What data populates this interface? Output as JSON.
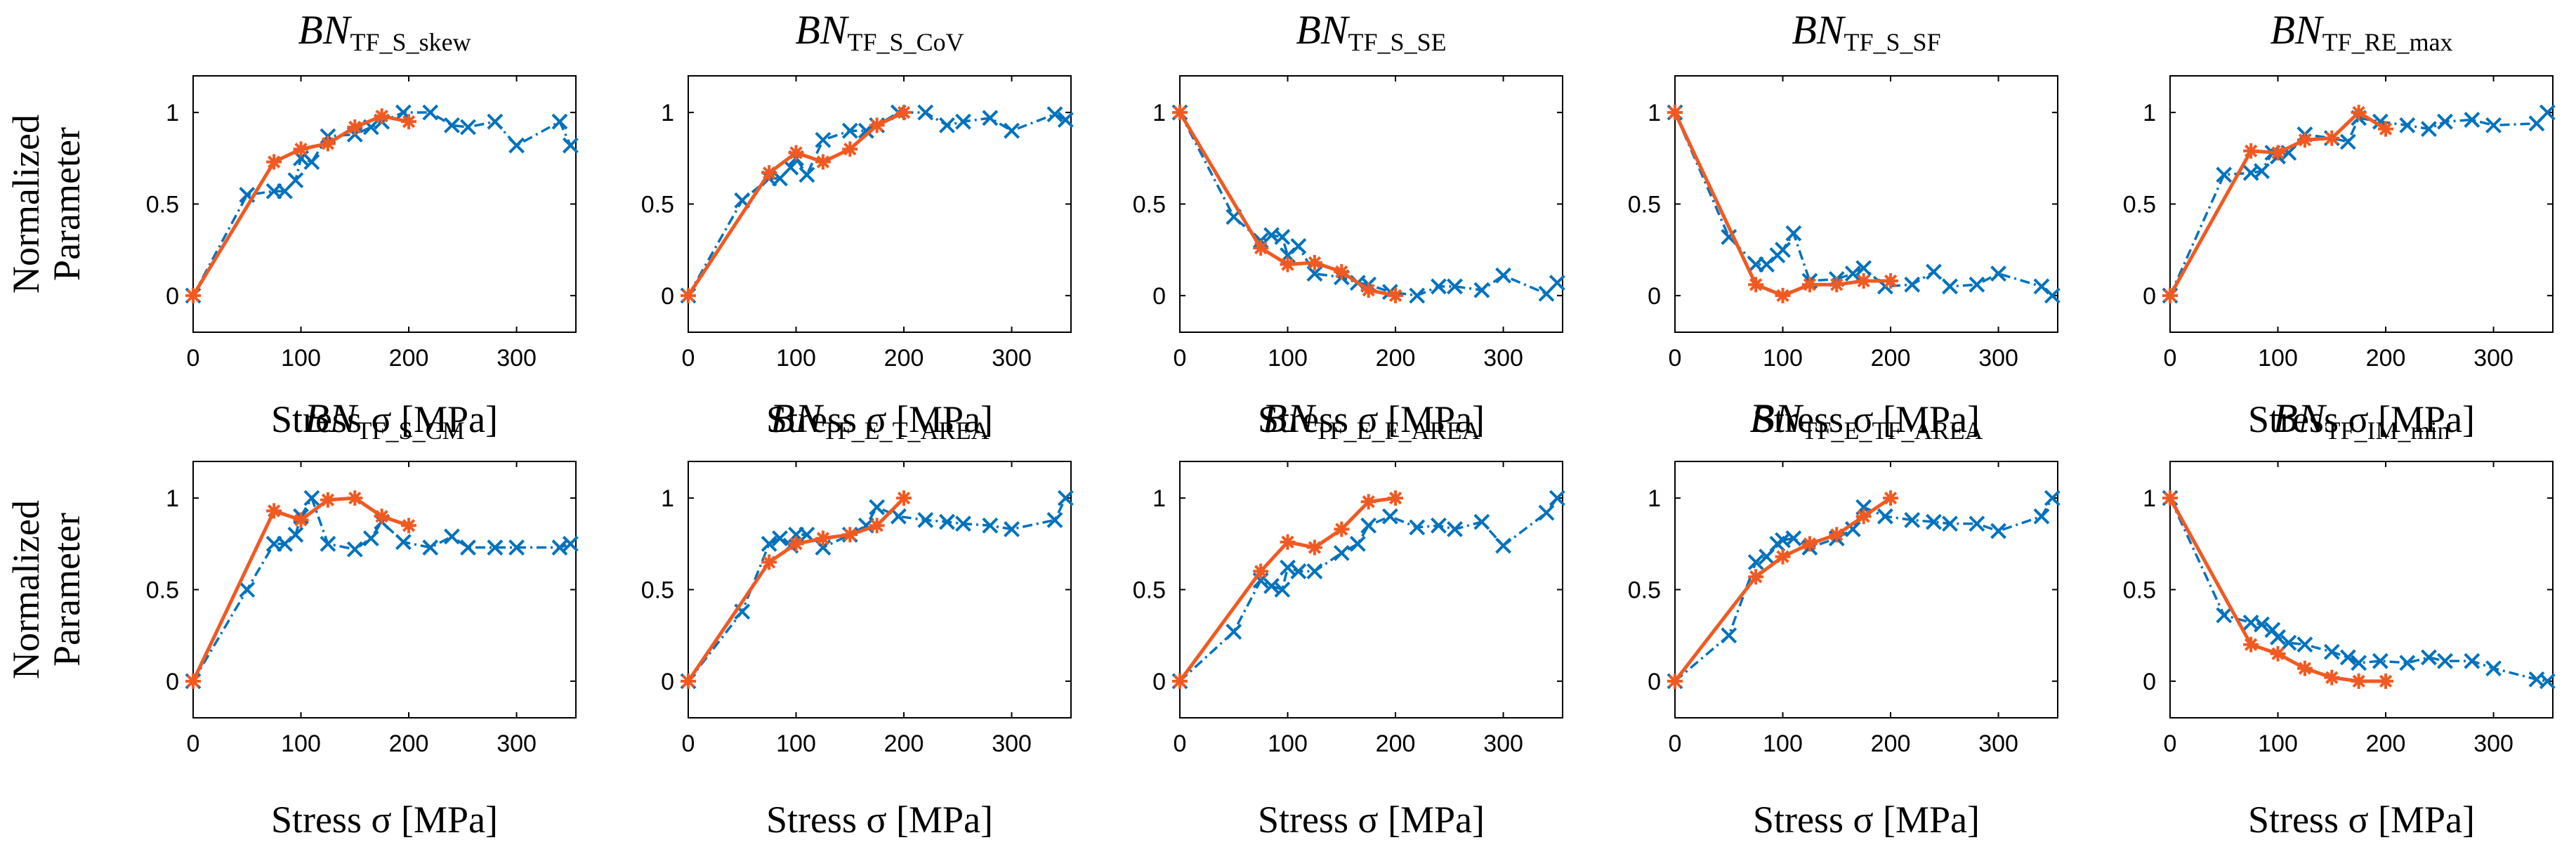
{
  "colors": {
    "series_a": "#0072BD",
    "series_b": "#F05A22",
    "axis": "#000000"
  },
  "chart_data": [
    {
      "type": "line",
      "title_main": "BN",
      "title_sub": "TF_S_skew",
      "xlabel": "Stress σ [MPa]",
      "ylabel": [
        "Normalized",
        "Parameter"
      ],
      "xlim": [
        0,
        355
      ],
      "ylim": [
        -0.2,
        1.2
      ],
      "xticks": [
        "0",
        "100",
        "200",
        "300"
      ],
      "yticks": [
        "0",
        "0.5",
        "1"
      ],
      "series": [
        {
          "name": "blue",
          "x": [
            0,
            50,
            75,
            85,
            95,
            100,
            110,
            125,
            150,
            165,
            175,
            195,
            220,
            240,
            255,
            280,
            300,
            340,
            350
          ],
          "y": [
            0,
            0.55,
            0.57,
            0.57,
            0.63,
            0.75,
            0.73,
            0.87,
            0.88,
            0.92,
            0.95,
            1.0,
            1.0,
            0.93,
            0.92,
            0.95,
            0.82,
            0.95,
            0.82
          ]
        },
        {
          "name": "orange",
          "x": [
            0,
            75,
            100,
            125,
            150,
            175,
            200
          ],
          "y": [
            0,
            0.73,
            0.8,
            0.83,
            0.92,
            0.98,
            0.95
          ]
        }
      ]
    },
    {
      "type": "line",
      "title_main": "BN",
      "title_sub": "TF_S_CoV",
      "xlabel": "Stress σ [MPa]",
      "ylabel": [],
      "xlim": [
        0,
        355
      ],
      "ylim": [
        -0.2,
        1.2
      ],
      "xticks": [
        "0",
        "100",
        "200",
        "300"
      ],
      "yticks": [
        "0",
        "0.5",
        "1"
      ],
      "series": [
        {
          "name": "blue",
          "x": [
            0,
            50,
            75,
            85,
            95,
            100,
            110,
            125,
            150,
            165,
            175,
            195,
            220,
            240,
            255,
            280,
            300,
            340,
            350
          ],
          "y": [
            0,
            0.52,
            0.64,
            0.64,
            0.7,
            0.75,
            0.66,
            0.85,
            0.9,
            0.9,
            0.93,
            1.0,
            1.0,
            0.93,
            0.95,
            0.97,
            0.9,
            0.99,
            0.96
          ]
        },
        {
          "name": "orange",
          "x": [
            0,
            75,
            100,
            125,
            150,
            175,
            200
          ],
          "y": [
            0,
            0.67,
            0.78,
            0.73,
            0.8,
            0.93,
            1.0
          ]
        }
      ]
    },
    {
      "type": "line",
      "title_main": "BN",
      "title_sub": "TF_S_SE",
      "xlabel": "Stress σ [MPa]",
      "ylabel": [],
      "xlim": [
        0,
        355
      ],
      "ylim": [
        -0.2,
        1.2
      ],
      "xticks": [
        "0",
        "100",
        "200",
        "300"
      ],
      "yticks": [
        "0",
        "0.5",
        "1"
      ],
      "series": [
        {
          "name": "blue",
          "x": [
            0,
            50,
            75,
            85,
            95,
            100,
            110,
            125,
            150,
            165,
            175,
            195,
            220,
            240,
            255,
            280,
            300,
            340,
            350
          ],
          "y": [
            1.0,
            0.43,
            0.3,
            0.33,
            0.32,
            0.22,
            0.27,
            0.12,
            0.1,
            0.07,
            0.06,
            0.02,
            0.0,
            0.05,
            0.05,
            0.03,
            0.11,
            0.01,
            0.07
          ]
        },
        {
          "name": "orange",
          "x": [
            0,
            75,
            100,
            125,
            150,
            175,
            200
          ],
          "y": [
            1.0,
            0.26,
            0.17,
            0.18,
            0.13,
            0.03,
            0.0
          ]
        }
      ]
    },
    {
      "type": "line",
      "title_main": "BN",
      "title_sub": "TF_S_SF",
      "xlabel": "Stress σ [MPa]",
      "ylabel": [],
      "xlim": [
        0,
        355
      ],
      "ylim": [
        -0.2,
        1.2
      ],
      "xticks": [
        "0",
        "100",
        "200",
        "300"
      ],
      "yticks": [
        "0",
        "0.5",
        "1"
      ],
      "series": [
        {
          "name": "blue",
          "x": [
            0,
            50,
            75,
            85,
            95,
            100,
            110,
            125,
            150,
            165,
            175,
            195,
            220,
            240,
            255,
            280,
            300,
            340,
            350
          ],
          "y": [
            1.0,
            0.32,
            0.17,
            0.17,
            0.22,
            0.25,
            0.34,
            0.08,
            0.09,
            0.12,
            0.15,
            0.05,
            0.06,
            0.13,
            0.05,
            0.06,
            0.12,
            0.05,
            0.0
          ]
        },
        {
          "name": "orange",
          "x": [
            0,
            75,
            100,
            125,
            150,
            175,
            200
          ],
          "y": [
            1.0,
            0.06,
            0.0,
            0.06,
            0.06,
            0.08,
            0.08
          ]
        }
      ]
    },
    {
      "type": "line",
      "title_main": "BN",
      "title_sub": "TF_RE_max",
      "xlabel": "Stress σ [MPa]",
      "ylabel": [],
      "xlim": [
        0,
        355
      ],
      "ylim": [
        -0.2,
        1.2
      ],
      "xticks": [
        "0",
        "100",
        "200",
        "300"
      ],
      "yticks": [
        "0",
        "0.5",
        "1"
      ],
      "series": [
        {
          "name": "blue",
          "x": [
            0,
            50,
            75,
            85,
            95,
            100,
            110,
            125,
            150,
            165,
            175,
            195,
            220,
            240,
            255,
            280,
            300,
            340,
            350
          ],
          "y": [
            0,
            0.66,
            0.67,
            0.68,
            0.78,
            0.76,
            0.78,
            0.88,
            0.86,
            0.84,
            0.97,
            0.95,
            0.93,
            0.91,
            0.95,
            0.96,
            0.93,
            0.94,
            1.0
          ]
        },
        {
          "name": "orange",
          "x": [
            0,
            75,
            100,
            125,
            150,
            175,
            200
          ],
          "y": [
            0,
            0.79,
            0.78,
            0.85,
            0.86,
            1.0,
            0.91
          ]
        }
      ]
    },
    {
      "type": "line",
      "title_main": "BN",
      "title_sub": "TF_S_CM",
      "xlabel": "Stress σ [MPa]",
      "ylabel": [
        "Normalized",
        "Parameter"
      ],
      "xlim": [
        0,
        355
      ],
      "ylim": [
        -0.2,
        1.2
      ],
      "xticks": [
        "0",
        "100",
        "200",
        "300"
      ],
      "yticks": [
        "0",
        "0.5",
        "1"
      ],
      "series": [
        {
          "name": "blue",
          "x": [
            0,
            50,
            75,
            85,
            95,
            100,
            110,
            125,
            150,
            165,
            175,
            195,
            220,
            240,
            255,
            280,
            300,
            340,
            350
          ],
          "y": [
            0,
            0.5,
            0.75,
            0.75,
            0.8,
            0.9,
            1.0,
            0.75,
            0.72,
            0.78,
            0.87,
            0.76,
            0.73,
            0.79,
            0.73,
            0.73,
            0.73,
            0.73,
            0.75
          ]
        },
        {
          "name": "orange",
          "x": [
            0,
            75,
            100,
            125,
            150,
            175,
            200
          ],
          "y": [
            0,
            0.93,
            0.88,
            0.99,
            1.0,
            0.9,
            0.85
          ]
        }
      ]
    },
    {
      "type": "line",
      "title_main": "BN",
      "title_sub": "TF_E_T_AREA",
      "xlabel": "Stress σ [MPa]",
      "ylabel": [],
      "xlim": [
        0,
        355
      ],
      "ylim": [
        -0.2,
        1.2
      ],
      "xticks": [
        "0",
        "100",
        "200",
        "300"
      ],
      "yticks": [
        "0",
        "0.5",
        "1"
      ],
      "series": [
        {
          "name": "blue",
          "x": [
            0,
            50,
            75,
            85,
            95,
            100,
            110,
            125,
            150,
            165,
            175,
            195,
            220,
            240,
            255,
            280,
            300,
            340,
            350
          ],
          "y": [
            0,
            0.38,
            0.75,
            0.78,
            0.74,
            0.8,
            0.8,
            0.73,
            0.8,
            0.85,
            0.95,
            0.9,
            0.88,
            0.87,
            0.86,
            0.85,
            0.83,
            0.88,
            1.0
          ]
        },
        {
          "name": "orange",
          "x": [
            0,
            75,
            100,
            125,
            150,
            175,
            200
          ],
          "y": [
            0,
            0.65,
            0.75,
            0.78,
            0.8,
            0.85,
            1.0
          ]
        }
      ]
    },
    {
      "type": "line",
      "title_main": "BN",
      "title_sub": "TF_E_F_AREA",
      "xlabel": "Stress σ [MPa]",
      "ylabel": [],
      "xlim": [
        0,
        355
      ],
      "ylim": [
        -0.2,
        1.2
      ],
      "xticks": [
        "0",
        "100",
        "200",
        "300"
      ],
      "yticks": [
        "0",
        "0.5",
        "1"
      ],
      "series": [
        {
          "name": "blue",
          "x": [
            0,
            50,
            75,
            85,
            95,
            100,
            110,
            125,
            150,
            165,
            175,
            195,
            220,
            240,
            255,
            280,
            300,
            340,
            350
          ],
          "y": [
            0,
            0.27,
            0.55,
            0.52,
            0.5,
            0.62,
            0.6,
            0.6,
            0.7,
            0.75,
            0.85,
            0.9,
            0.84,
            0.85,
            0.83,
            0.87,
            0.74,
            0.92,
            1.0
          ]
        },
        {
          "name": "orange",
          "x": [
            0,
            75,
            100,
            125,
            150,
            175,
            200
          ],
          "y": [
            0,
            0.6,
            0.76,
            0.73,
            0.83,
            0.98,
            1.0
          ]
        }
      ]
    },
    {
      "type": "line",
      "title_main": "BN",
      "title_sub": "TF_E_TF_AREA",
      "xlabel": "Stress σ [MPa]",
      "ylabel": [],
      "xlim": [
        0,
        355
      ],
      "ylim": [
        -0.2,
        1.2
      ],
      "xticks": [
        "0",
        "100",
        "200",
        "300"
      ],
      "yticks": [
        "0",
        "0.5",
        "1"
      ],
      "series": [
        {
          "name": "blue",
          "x": [
            0,
            50,
            75,
            85,
            95,
            100,
            110,
            125,
            150,
            165,
            175,
            195,
            220,
            240,
            255,
            280,
            300,
            340,
            350
          ],
          "y": [
            0,
            0.25,
            0.65,
            0.68,
            0.75,
            0.77,
            0.78,
            0.73,
            0.78,
            0.83,
            0.95,
            0.9,
            0.88,
            0.87,
            0.86,
            0.86,
            0.82,
            0.9,
            1.0
          ]
        },
        {
          "name": "orange",
          "x": [
            0,
            75,
            100,
            125,
            150,
            175,
            200
          ],
          "y": [
            0,
            0.57,
            0.68,
            0.75,
            0.8,
            0.9,
            1.0
          ]
        }
      ]
    },
    {
      "type": "line",
      "title_main": "BN",
      "title_sub": "TF_IM_min",
      "xlabel": "Stress σ [MPa]",
      "ylabel": [],
      "xlim": [
        0,
        355
      ],
      "ylim": [
        -0.2,
        1.2
      ],
      "xticks": [
        "0",
        "100",
        "200",
        "300"
      ],
      "yticks": [
        "0",
        "0.5",
        "1"
      ],
      "series": [
        {
          "name": "blue",
          "x": [
            0,
            50,
            75,
            85,
            95,
            100,
            110,
            125,
            150,
            165,
            175,
            195,
            220,
            240,
            255,
            280,
            300,
            340,
            350
          ],
          "y": [
            1.0,
            0.36,
            0.32,
            0.31,
            0.28,
            0.24,
            0.21,
            0.2,
            0.16,
            0.13,
            0.1,
            0.11,
            0.1,
            0.13,
            0.11,
            0.11,
            0.07,
            0.01,
            0.0
          ]
        },
        {
          "name": "orange",
          "x": [
            0,
            75,
            100,
            125,
            150,
            175,
            200
          ],
          "y": [
            1.0,
            0.2,
            0.15,
            0.07,
            0.02,
            0.0,
            0.0
          ]
        }
      ]
    }
  ]
}
